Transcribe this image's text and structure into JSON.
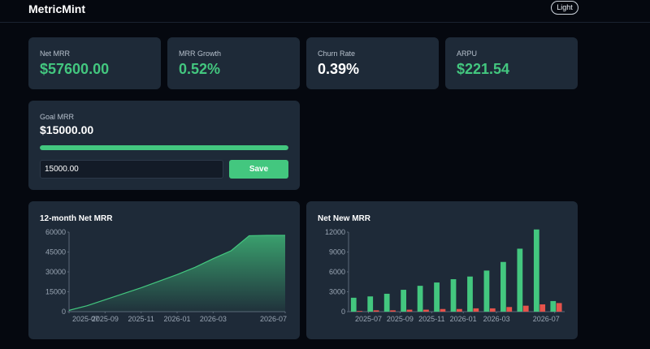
{
  "header": {
    "brand": "MetricMint",
    "theme_button": "Light"
  },
  "kpis": [
    {
      "label": "Net MRR",
      "value": "$57600.00",
      "tone": "green"
    },
    {
      "label": "MRR Growth",
      "value": "0.52%",
      "tone": "green"
    },
    {
      "label": "Churn Rate",
      "value": "0.39%",
      "tone": "white"
    },
    {
      "label": "ARPU",
      "value": "$221.54",
      "tone": "green"
    }
  ],
  "goal": {
    "label": "Goal MRR",
    "value": "$15000.00",
    "input_value": "15000.00",
    "save_label": "Save",
    "progress_fraction": 1.0
  },
  "colors": {
    "green": "#43c77f",
    "red": "#e5534b",
    "card": "#1e2a38",
    "background": "#05080f"
  },
  "chart_data": [
    {
      "type": "area",
      "title": "12-month Net MRR",
      "x": [
        "2025-07",
        "2025-08",
        "2025-09",
        "2025-10",
        "2025-11",
        "2025-12",
        "2026-01",
        "2026-02",
        "2026-03",
        "2026-04",
        "2026-05",
        "2026-06",
        "2026-07"
      ],
      "values": [
        1000,
        4500,
        9000,
        13500,
        18000,
        23000,
        28000,
        33500,
        40000,
        46000,
        57300,
        57600,
        57600
      ],
      "ylim": [
        0,
        60000
      ],
      "yticks": [
        "0",
        "15000",
        "30000",
        "45000",
        "60000"
      ],
      "xticks": [
        "2025-07",
        "2025-09",
        "2025-11",
        "2026-01",
        "2026-03",
        "2026-07"
      ]
    },
    {
      "type": "bar",
      "title": "Net New MRR",
      "categories": [
        "2025-06",
        "2025-07",
        "2025-08",
        "2025-09",
        "2025-10",
        "2025-11",
        "2025-12",
        "2026-01",
        "2026-02",
        "2026-03",
        "2026-04",
        "2026-05",
        "2026-06"
      ],
      "series": [
        {
          "color": "#43c77f",
          "values": [
            2100,
            2300,
            2700,
            3300,
            3900,
            4400,
            4900,
            5300,
            6200,
            7500,
            9500,
            12400,
            1600
          ]
        },
        {
          "color": "#e5534b",
          "values": [
            100,
            200,
            200,
            300,
            300,
            400,
            400,
            500,
            500,
            700,
            900,
            1100,
            1300
          ]
        }
      ],
      "ylim": [
        0,
        12000
      ],
      "yticks": [
        "0",
        "3000",
        "6000",
        "9000",
        "12000"
      ],
      "xticks": [
        "2025-07",
        "2025-09",
        "2025-11",
        "2026-01",
        "2026-03",
        "2026-07"
      ]
    }
  ]
}
